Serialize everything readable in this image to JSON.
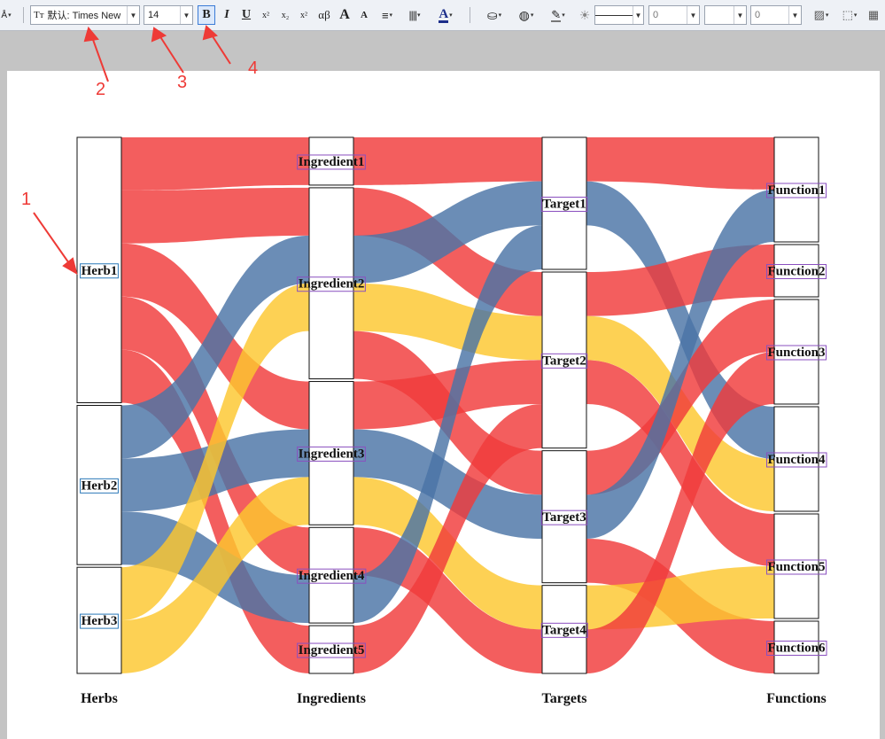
{
  "toolbar": {
    "font_name": "默认: Times New",
    "font_size": "14",
    "bold": "B",
    "italic": "I",
    "underline": "U",
    "superscript": "x²",
    "subscript": "x₂",
    "superscript2": "x²",
    "greek": "αβ",
    "grow_font": "A",
    "shrink_font": "A",
    "font_color": "A",
    "line_width_value": "0",
    "line_opacity_value": "0"
  },
  "callouts": [
    "1",
    "2",
    "3",
    "4"
  ],
  "chart_data": {
    "type": "sankey",
    "columns": [
      "Herbs",
      "Ingredients",
      "Targets",
      "Functions"
    ],
    "nodes": {
      "Herbs": [
        "Herb1",
        "Herb2",
        "Herb3"
      ],
      "Ingredients": [
        "Ingredient1",
        "Ingredient2",
        "Ingredient3",
        "Ingredient4",
        "Ingredient5"
      ],
      "Targets": [
        "Target1",
        "Target2",
        "Target3",
        "Target4"
      ],
      "Functions": [
        "Function1",
        "Function2",
        "Function3",
        "Function4",
        "Function5",
        "Function6"
      ]
    },
    "colors": {
      "Herb1": "#f03a3a",
      "Herb2": "#4a74a6",
      "Herb3": "#fcc72e"
    },
    "links": [
      {
        "from": "Herb1",
        "to": "Ingredient1",
        "value": 1
      },
      {
        "from": "Herb1",
        "to": "Ingredient2",
        "value": 1
      },
      {
        "from": "Herb1",
        "to": "Ingredient3",
        "value": 1
      },
      {
        "from": "Herb1",
        "to": "Ingredient4",
        "value": 1
      },
      {
        "from": "Herb1",
        "to": "Ingredient5",
        "value": 1
      },
      {
        "from": "Herb2",
        "to": "Ingredient2",
        "value": 1
      },
      {
        "from": "Herb2",
        "to": "Ingredient3",
        "value": 1
      },
      {
        "from": "Herb2",
        "to": "Ingredient4",
        "value": 1
      },
      {
        "from": "Herb3",
        "to": "Ingredient2",
        "value": 1
      },
      {
        "from": "Herb3",
        "to": "Ingredient3",
        "value": 1
      },
      {
        "from": "Ingredient1",
        "to": "Target1",
        "value": 1
      },
      {
        "from": "Ingredient2",
        "to": "Target2",
        "value": 1
      },
      {
        "from": "Ingredient2",
        "to": "Target1",
        "value": 1
      },
      {
        "from": "Ingredient2",
        "to": "Target2",
        "value": 1
      },
      {
        "from": "Ingredient2",
        "to": "Target3",
        "value": 1
      },
      {
        "from": "Ingredient3",
        "to": "Target2",
        "value": 1
      },
      {
        "from": "Ingredient3",
        "to": "Target3",
        "value": 1
      },
      {
        "from": "Ingredient3",
        "to": "Target4",
        "value": 1
      },
      {
        "from": "Ingredient4",
        "to": "Target4",
        "value": 1
      },
      {
        "from": "Ingredient4",
        "to": "Target1",
        "value": 1
      },
      {
        "from": "Ingredient5",
        "to": "Target2",
        "value": 1
      },
      {
        "from": "Target1",
        "to": "Function1",
        "value": 1
      },
      {
        "from": "Target1",
        "to": "Function4",
        "value": 1
      },
      {
        "from": "Target2",
        "to": "Function2",
        "value": 1
      },
      {
        "from": "Target2",
        "to": "Function4",
        "value": 1
      },
      {
        "from": "Target2",
        "to": "Function5",
        "value": 1
      },
      {
        "from": "Target3",
        "to": "Function3",
        "value": 1
      },
      {
        "from": "Target3",
        "to": "Function1",
        "value": 1
      },
      {
        "from": "Target3",
        "to": "Function6",
        "value": 1
      },
      {
        "from": "Target4",
        "to": "Function5",
        "value": 1
      },
      {
        "from": "Target4",
        "to": "Function3",
        "value": 1
      }
    ]
  }
}
